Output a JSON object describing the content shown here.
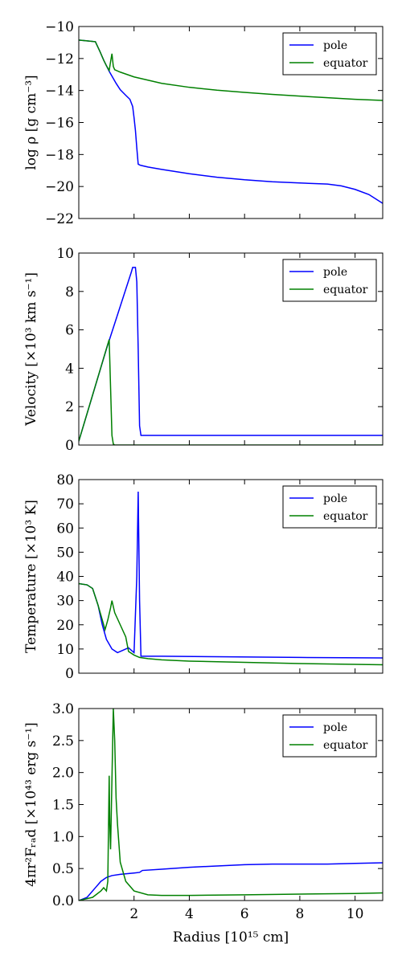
{
  "colors": {
    "pole": "#0000ff",
    "equator": "#008000"
  },
  "xlabel": "Radius [10¹⁵ cm]",
  "chart_data": [
    {
      "type": "line",
      "ylabel": "log ρ [g cm⁻³]",
      "xlim": [
        0.0,
        11.0
      ],
      "ylim": [
        -22,
        -10
      ],
      "xticks": [
        2,
        4,
        6,
        8,
        10
      ],
      "yticks": [
        -22,
        -20,
        -18,
        -16,
        -14,
        -12,
        -10
      ],
      "ytick_labels": [
        "−22",
        "−20",
        "−18",
        "−16",
        "−14",
        "−12",
        "−10"
      ],
      "legend": "top-right",
      "series": [
        {
          "name": "pole",
          "color": "#0000ff",
          "x": [
            0.0,
            0.3,
            0.6,
            0.75,
            0.9,
            1.0,
            1.1,
            1.2,
            1.35,
            1.5,
            1.7,
            1.85,
            1.95,
            2.0,
            2.05,
            2.1,
            2.15,
            2.2,
            2.25,
            2.5,
            3,
            4,
            5,
            6,
            7,
            8,
            9,
            9.5,
            10,
            10.5,
            11.0
          ],
          "y": [
            -10.85,
            -10.9,
            -10.95,
            -11.5,
            -12.1,
            -12.45,
            -12.8,
            -13.1,
            -13.55,
            -13.95,
            -14.3,
            -14.55,
            -15.0,
            -15.7,
            -16.5,
            -17.6,
            -18.6,
            -18.65,
            -18.68,
            -18.78,
            -18.93,
            -19.2,
            -19.42,
            -19.58,
            -19.7,
            -19.78,
            -19.85,
            -19.96,
            -20.18,
            -20.5,
            -21.05
          ]
        },
        {
          "name": "equator",
          "color": "#008000",
          "x": [
            0.0,
            0.3,
            0.6,
            0.75,
            0.9,
            1.0,
            1.1,
            1.15,
            1.2,
            1.25,
            1.3,
            1.5,
            2,
            3,
            4,
            5,
            6,
            7,
            8,
            9,
            10,
            11.0
          ],
          "y": [
            -10.85,
            -10.9,
            -10.95,
            -11.5,
            -12.1,
            -12.45,
            -12.75,
            -12.2,
            -11.7,
            -12.5,
            -12.7,
            -12.85,
            -13.15,
            -13.55,
            -13.8,
            -13.98,
            -14.12,
            -14.24,
            -14.35,
            -14.45,
            -14.55,
            -14.62
          ]
        }
      ]
    },
    {
      "type": "line",
      "ylabel": "Velocity [×10³ km s⁻¹]",
      "xlim": [
        0.0,
        11.0
      ],
      "ylim": [
        0,
        10
      ],
      "xticks": [
        2,
        4,
        6,
        8,
        10
      ],
      "yticks": [
        0,
        2,
        4,
        6,
        8,
        10
      ],
      "ytick_labels": [
        "0",
        "2",
        "4",
        "6",
        "8",
        "10"
      ],
      "legend": "top-right",
      "series": [
        {
          "name": "pole",
          "color": "#0000ff",
          "x": [
            0.0,
            1.0,
            1.9,
            1.95,
            2.05,
            2.1,
            2.15,
            2.2,
            2.25,
            2.3,
            3,
            5,
            8,
            11.0
          ],
          "y": [
            0.2,
            5.0,
            9.0,
            9.25,
            9.25,
            8.5,
            5.0,
            1.0,
            0.5,
            0.5,
            0.5,
            0.5,
            0.5,
            0.5
          ]
        },
        {
          "name": "equator",
          "color": "#008000",
          "x": [
            0.0,
            1.1,
            1.15,
            1.2,
            1.25,
            1.3,
            2,
            5,
            11.0
          ],
          "y": [
            0.2,
            5.5,
            3.0,
            0.5,
            0.05,
            0.0,
            0.0,
            0.0,
            0.0
          ]
        }
      ]
    },
    {
      "type": "line",
      "ylabel": "Temperature [×10³ K]",
      "xlim": [
        0.0,
        11.0
      ],
      "ylim": [
        0,
        80
      ],
      "xticks": [
        2,
        4,
        6,
        8,
        10
      ],
      "yticks": [
        0,
        10,
        20,
        30,
        40,
        50,
        60,
        70,
        80
      ],
      "ytick_labels": [
        "0",
        "10",
        "20",
        "30",
        "40",
        "50",
        "60",
        "70",
        "80"
      ],
      "legend": "top-right",
      "series": [
        {
          "name": "pole",
          "color": "#0000ff",
          "x": [
            0.0,
            0.3,
            0.5,
            0.7,
            0.85,
            1.0,
            1.2,
            1.4,
            1.6,
            1.8,
            1.9,
            2.0,
            2.1,
            2.15,
            2.2,
            2.25,
            2.35,
            3,
            5,
            8,
            11.0
          ],
          "y": [
            37,
            36.5,
            35,
            28,
            20,
            14,
            10,
            8.5,
            9.5,
            10.5,
            9.5,
            8.5,
            40,
            75,
            30,
            7,
            7,
            7,
            6.8,
            6.5,
            6.3
          ]
        },
        {
          "name": "equator",
          "color": "#008000",
          "x": [
            0.0,
            0.3,
            0.5,
            0.7,
            0.85,
            0.95,
            1.05,
            1.15,
            1.2,
            1.3,
            1.5,
            1.7,
            1.8,
            2.0,
            2.2,
            2.5,
            3,
            4,
            6,
            8,
            11.0
          ],
          "y": [
            37,
            36.5,
            35,
            28,
            22,
            18,
            22,
            27,
            30,
            25,
            20,
            15,
            9,
            7.5,
            6.5,
            6,
            5.5,
            5,
            4.5,
            4,
            3.5
          ]
        }
      ]
    },
    {
      "type": "line",
      "ylabel": "4πr²Fᵣₐd [×10⁴³ erg s⁻¹]",
      "xlim": [
        0.0,
        11.0
      ],
      "ylim": [
        0.0,
        3.0
      ],
      "xticks": [
        2,
        4,
        6,
        8,
        10
      ],
      "yticks": [
        0.0,
        0.5,
        1.0,
        1.5,
        2.0,
        2.5,
        3.0
      ],
      "ytick_labels": [
        "0.0",
        "0.5",
        "1.0",
        "1.5",
        "2.0",
        "2.5",
        "3.0"
      ],
      "xtick_labels": [
        "2",
        "4",
        "6",
        "8",
        "10"
      ],
      "legend": "top-right",
      "series": [
        {
          "name": "pole",
          "color": "#0000ff",
          "x": [
            0.0,
            0.3,
            0.6,
            0.8,
            1.0,
            1.2,
            1.5,
            2.0,
            2.2,
            2.3,
            3,
            4,
            5,
            6,
            7,
            8,
            9,
            10,
            11.0
          ],
          "y": [
            0.0,
            0.05,
            0.2,
            0.3,
            0.36,
            0.39,
            0.41,
            0.43,
            0.44,
            0.47,
            0.49,
            0.52,
            0.54,
            0.56,
            0.57,
            0.57,
            0.57,
            0.58,
            0.59
          ]
        },
        {
          "name": "equator",
          "color": "#008000",
          "x": [
            0.0,
            0.5,
            0.8,
            0.9,
            1.0,
            1.05,
            1.1,
            1.12,
            1.15,
            1.2,
            1.25,
            1.3,
            1.35,
            1.4,
            1.5,
            1.7,
            2.0,
            2.5,
            3,
            4,
            6,
            8,
            10,
            11.0
          ],
          "y": [
            0.0,
            0.05,
            0.15,
            0.2,
            0.15,
            0.3,
            1.95,
            1.2,
            0.8,
            1.9,
            3.0,
            2.5,
            1.6,
            1.2,
            0.6,
            0.3,
            0.15,
            0.09,
            0.08,
            0.08,
            0.09,
            0.1,
            0.11,
            0.12
          ]
        }
      ]
    }
  ]
}
